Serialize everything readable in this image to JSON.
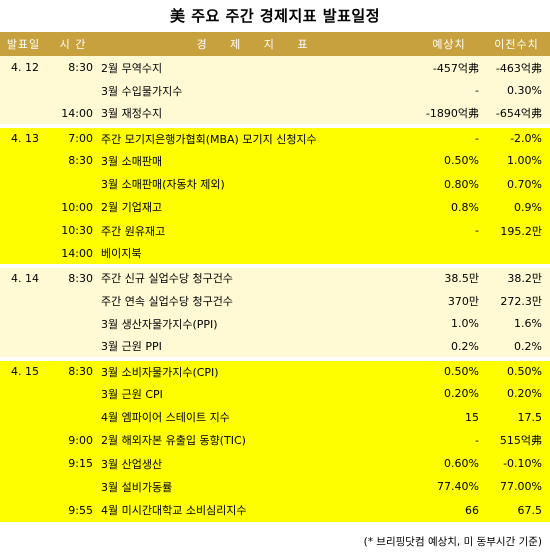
{
  "title": "美 주요 주간 경제지표 발표일정",
  "headers": {
    "date": "발표일",
    "time": "시 간",
    "name": "경 제 지 표",
    "estimate": "예상치",
    "previous": "이전수치"
  },
  "rows": [
    {
      "date": "4. 12",
      "time": "8:30",
      "name": "2월 무역수지",
      "estimate": "-457억弗",
      "previous": "-463억弗",
      "group": "a",
      "start": false
    },
    {
      "date": "",
      "time": "",
      "name": "3월 수입물가지수",
      "estimate": "-",
      "previous": "0.30%",
      "group": "a",
      "start": false
    },
    {
      "date": "",
      "time": "14:00",
      "name": "3월 재정수지",
      "estimate": "-1890억弗",
      "previous": "-654억弗",
      "group": "a",
      "start": false
    },
    {
      "date": "4. 13",
      "time": "7:00",
      "name": "주간 모기지은행가협회(MBA) 모기지 신청지수",
      "estimate": "-",
      "previous": "-2.0%",
      "group": "b",
      "start": true
    },
    {
      "date": "",
      "time": "8:30",
      "name": "3월 소매판매",
      "estimate": "0.50%",
      "previous": "1.00%",
      "group": "b",
      "start": false
    },
    {
      "date": "",
      "time": "",
      "name": "3월 소매판매(자동차 제외)",
      "estimate": "0.80%",
      "previous": "0.70%",
      "group": "b",
      "start": false
    },
    {
      "date": "",
      "time": "10:00",
      "name": "2월 기업재고",
      "estimate": "0.8%",
      "previous": "0.9%",
      "group": "b",
      "start": false
    },
    {
      "date": "",
      "time": "10:30",
      "name": "주간 원유재고",
      "estimate": "-",
      "previous": "195.2만",
      "group": "b",
      "start": false
    },
    {
      "date": "",
      "time": "14:00",
      "name": "베이지북",
      "estimate": "",
      "previous": "",
      "group": "b",
      "start": false
    },
    {
      "date": "4. 14",
      "time": "8:30",
      "name": "주간 신규 실업수당 청구건수",
      "estimate": "38.5만",
      "previous": "38.2만",
      "group": "a",
      "start": true
    },
    {
      "date": "",
      "time": "",
      "name": "주간 연속 실업수당 청구건수",
      "estimate": "370만",
      "previous": "272.3만",
      "group": "a",
      "start": false
    },
    {
      "date": "",
      "time": "",
      "name": "3월 생산자물가지수(PPI)",
      "estimate": "1.0%",
      "previous": "1.6%",
      "group": "a",
      "start": false
    },
    {
      "date": "",
      "time": "",
      "name": "3월 근원 PPI",
      "estimate": "0.2%",
      "previous": "0.2%",
      "group": "a",
      "start": false
    },
    {
      "date": "4. 15",
      "time": "8:30",
      "name": "3월 소비자물가지수(CPI)",
      "estimate": "0.50%",
      "previous": "0.50%",
      "group": "b",
      "start": true
    },
    {
      "date": "",
      "time": "",
      "name": "3월 근원 CPI",
      "estimate": "0.20%",
      "previous": "0.20%",
      "group": "b",
      "start": false
    },
    {
      "date": "",
      "time": "",
      "name": "4월 엠파이어 스테이트 지수",
      "estimate": "15",
      "previous": "17.5",
      "group": "b",
      "start": false
    },
    {
      "date": "",
      "time": "9:00",
      "name": "2월 해외자본 유출입 동향(TIC)",
      "estimate": "-",
      "previous": "515억弗",
      "group": "b",
      "start": false
    },
    {
      "date": "",
      "time": "9:15",
      "name": "3월 산업생산",
      "estimate": "0.60%",
      "previous": "-0.10%",
      "group": "b",
      "start": false
    },
    {
      "date": "",
      "time": "",
      "name": "3월 설비가동률",
      "estimate": "77.40%",
      "previous": "77.00%",
      "group": "b",
      "start": false
    },
    {
      "date": "",
      "time": "9:55",
      "name": "4월 미시간대학교 소비심리지수",
      "estimate": "66",
      "previous": "67.5",
      "group": "b",
      "start": false
    }
  ],
  "footnote": "(* 브리핑닷컴 예상치, 미 동부시간 기준)",
  "colors": {
    "header_bg": "#c7a13e",
    "group_a_bg": "#fffad4",
    "group_b_bg": "#fffe00"
  }
}
